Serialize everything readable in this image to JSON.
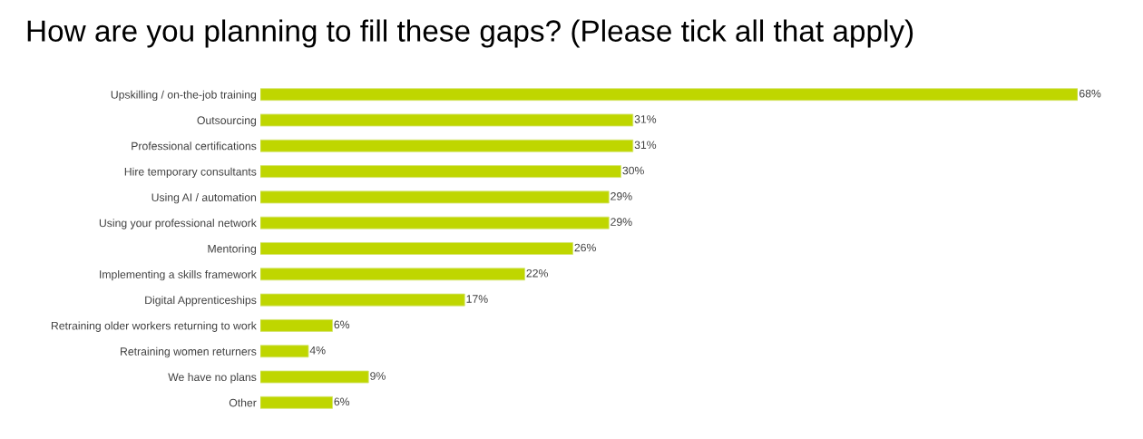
{
  "chart_data": {
    "type": "bar",
    "orientation": "horizontal",
    "title": "How are you planning to fill these gaps? (Please tick all that apply)",
    "categories": [
      "Upskilling / on-the-job training",
      "Outsourcing",
      "Professional certifications",
      "Hire temporary consultants",
      "Using AI / automation",
      "Using your professional network",
      "Mentoring",
      "Implementing a skills framework",
      "Digital Apprenticeships",
      "Retraining older workers returning to work",
      "Retraining women returners",
      "We have no plans",
      "Other"
    ],
    "values": [
      68,
      31,
      31,
      30,
      29,
      29,
      26,
      22,
      17,
      6,
      4,
      9,
      6
    ],
    "value_labels": [
      "68%",
      "31%",
      "31%",
      "30%",
      "29%",
      "29%",
      "26%",
      "22%",
      "17%",
      "6%",
      "4%",
      "9%",
      "6%"
    ],
    "color": "#bfd600",
    "tick_labels": "y"
  }
}
